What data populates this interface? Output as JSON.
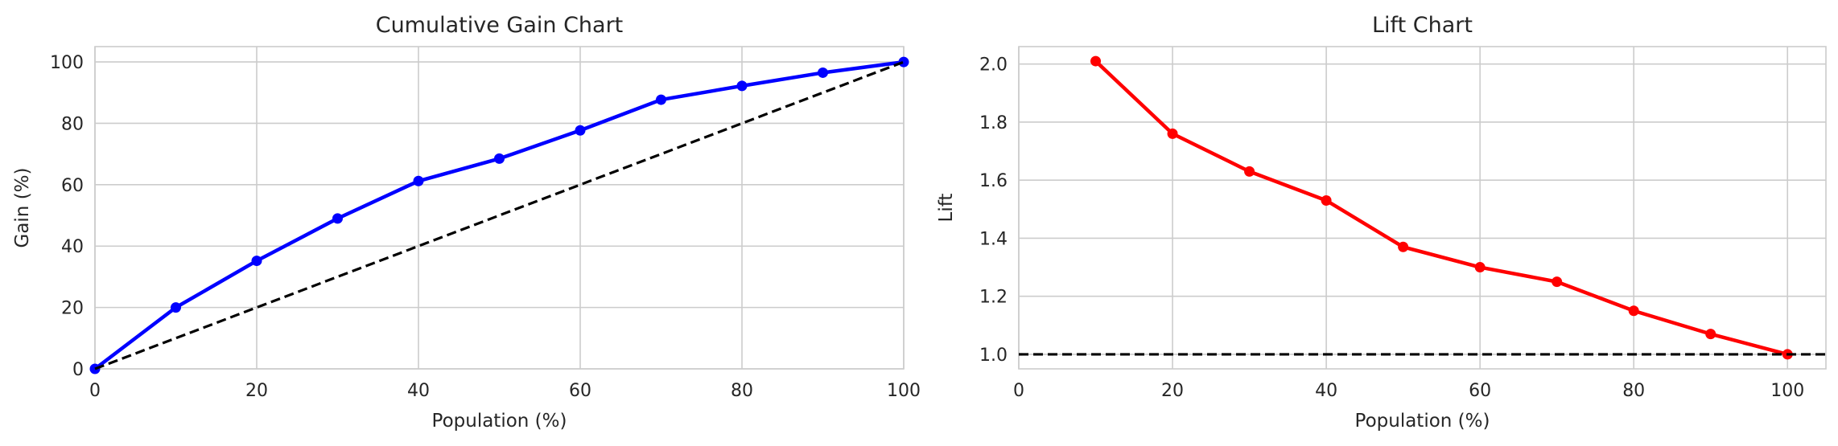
{
  "chart_data": [
    {
      "type": "line",
      "title": "Cumulative Gain Chart",
      "xlabel": "Population (%)",
      "ylabel": "Gain (%)",
      "xlim": [
        0,
        100
      ],
      "ylim": [
        0,
        105
      ],
      "xticks": [
        0,
        20,
        40,
        60,
        80,
        100
      ],
      "yticks": [
        0,
        20,
        40,
        60,
        80,
        100
      ],
      "grid": true,
      "series": [
        {
          "style": "solid-with-markers",
          "color": "#0000ff",
          "x": [
            0,
            10,
            20,
            30,
            40,
            50,
            60,
            70,
            80,
            90,
            100
          ],
          "y": [
            0,
            20,
            35.2,
            49,
            61.2,
            68.5,
            77.7,
            87.7,
            92.2,
            96.5,
            100
          ]
        },
        {
          "style": "dashed",
          "color": "#000000",
          "x": [
            0,
            100
          ],
          "y": [
            0,
            100
          ]
        }
      ]
    },
    {
      "type": "line",
      "title": "Lift Chart",
      "xlabel": "Population (%)",
      "ylabel": "Lift",
      "xlim": [
        0,
        105
      ],
      "ylim": [
        0.95,
        2.06
      ],
      "xticks": [
        0,
        20,
        40,
        60,
        80,
        100
      ],
      "yticks": [
        "1.0",
        "1.2",
        "1.4",
        "1.6",
        "1.8",
        "2.0"
      ],
      "grid": true,
      "series": [
        {
          "style": "solid-with-markers",
          "color": "#ff0000",
          "x": [
            10,
            20,
            30,
            40,
            50,
            60,
            70,
            80,
            90,
            100
          ],
          "y": [
            2.01,
            1.76,
            1.63,
            1.53,
            1.37,
            1.3,
            1.25,
            1.15,
            1.07,
            1.0
          ]
        },
        {
          "style": "dashed-horizontal",
          "color": "#000000",
          "y": 1.0
        }
      ]
    }
  ]
}
